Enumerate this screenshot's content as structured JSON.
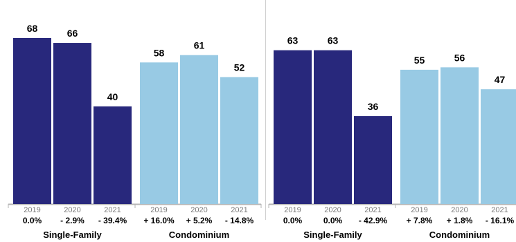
{
  "colors": {
    "single_family": "#28287c",
    "condominium": "#98cae4",
    "axis": "#b5b5b5",
    "year_text": "#7a7a7a",
    "text": "#000000"
  },
  "chart_data": [
    {
      "type": "bar",
      "ylim": [
        0,
        75
      ],
      "groups": [
        {
          "name": "Single-Family",
          "color_key": "single_family",
          "categories": [
            "2019",
            "2020",
            "2021"
          ],
          "values": [
            68,
            66,
            40
          ],
          "changes": [
            "0.0%",
            "- 2.9%",
            "- 39.4%"
          ]
        },
        {
          "name": "Condominium",
          "color_key": "condominium",
          "categories": [
            "2019",
            "2020",
            "2021"
          ],
          "values": [
            58,
            61,
            52
          ],
          "changes": [
            "+ 16.0%",
            "+ 5.2%",
            "- 14.8%"
          ]
        }
      ]
    },
    {
      "type": "bar",
      "ylim": [
        0,
        75
      ],
      "groups": [
        {
          "name": "Single-Family",
          "color_key": "single_family",
          "categories": [
            "2019",
            "2020",
            "2021"
          ],
          "values": [
            63,
            63,
            36
          ],
          "changes": [
            "0.0%",
            "0.0%",
            "- 42.9%"
          ]
        },
        {
          "name": "Condominium",
          "color_key": "condominium",
          "categories": [
            "2019",
            "2020",
            "2021"
          ],
          "values": [
            55,
            56,
            47
          ],
          "changes": [
            "+ 7.8%",
            "+ 1.8%",
            "- 16.1%"
          ]
        }
      ]
    }
  ]
}
